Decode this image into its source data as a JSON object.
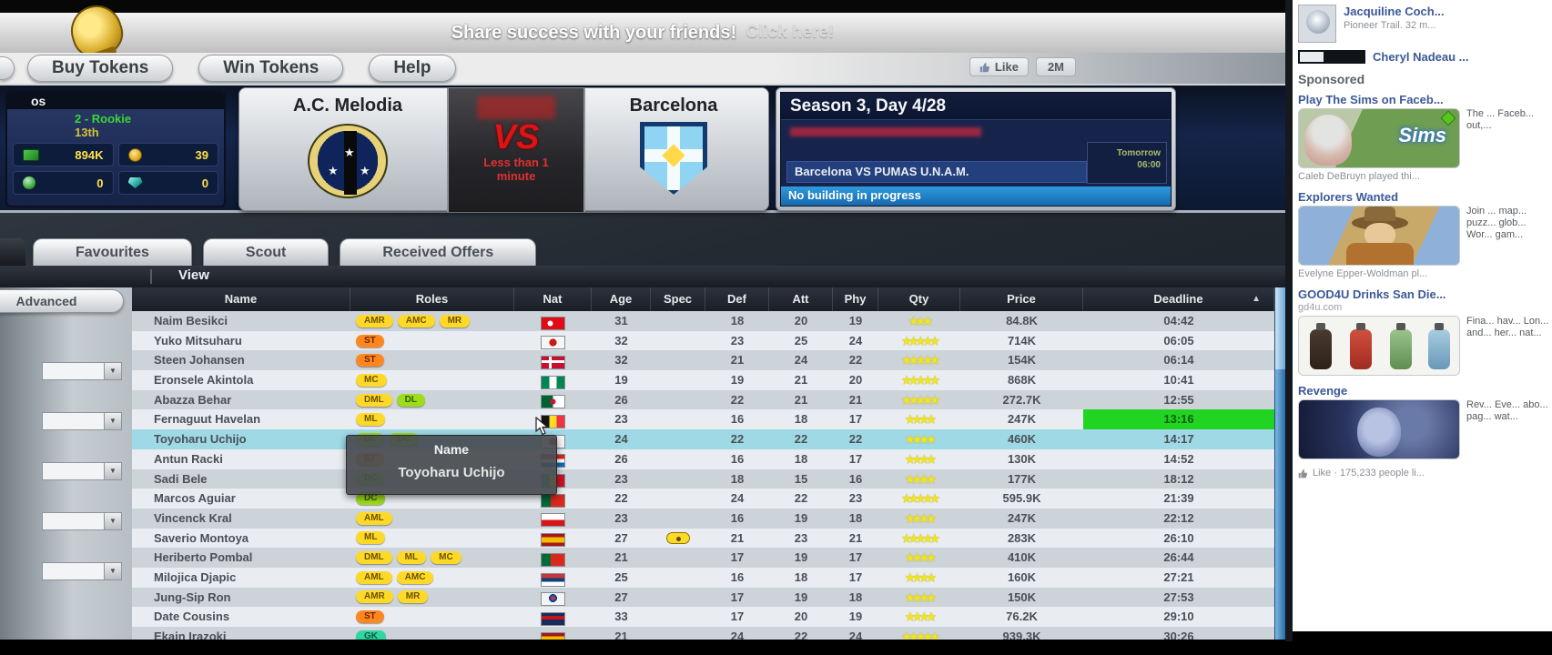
{
  "banner": {
    "text": "Share success with your friends!",
    "link": "Click here!"
  },
  "nav": {
    "buy_tokens": "Buy Tokens",
    "win_tokens": "Win Tokens",
    "help": "Help",
    "like_label": "Like",
    "like_count": "2M"
  },
  "club": {
    "name": "os",
    "level": "2 - Rookie",
    "rank": "13th",
    "cash": "894K",
    "tokens": "39",
    "stat3": "0",
    "stat4": "0"
  },
  "match": {
    "home": "A.C. Melodia",
    "away": "Barcelona",
    "vs": "VS",
    "countdown": "Less than 1 minute"
  },
  "season": {
    "title": "Season 3, Day 4/28",
    "fixture": "Barcelona VS PUMAS U.N.A.M.",
    "status": "No building in progress",
    "timer_label": "Tomorrow",
    "timer_value": "06:00"
  },
  "tabs": [
    {
      "label": "Favourites"
    },
    {
      "label": "Scout"
    },
    {
      "label": "Received Offers"
    }
  ],
  "toolbar": {
    "view": "View",
    "advanced": "Advanced"
  },
  "glyphs": {
    "star": "★",
    "caret": "▼",
    "sort": "▲"
  },
  "filters": [
    "",
    "",
    "",
    "",
    ""
  ],
  "table": {
    "columns": [
      "Name",
      "Roles",
      "Nat",
      "Age",
      "Spec",
      "Def",
      "Att",
      "Phy",
      "Qty",
      "Price",
      "Deadline"
    ],
    "rows": [
      {
        "name": "Naim Besikci",
        "roles": [
          {
            "t": "AMR",
            "c": "y"
          },
          {
            "t": "AMC",
            "c": "y"
          },
          {
            "t": "MR",
            "c": "y"
          }
        ],
        "nat": "turkey",
        "age": "31",
        "spec": false,
        "def": "18",
        "att": "20",
        "phy": "19",
        "stars": 3,
        "price": "84.8K",
        "deadline": "04:42",
        "green": false,
        "highlight": false
      },
      {
        "name": "Yuko Mitsuharu",
        "roles": [
          {
            "t": "ST",
            "c": "o"
          }
        ],
        "nat": "japan",
        "age": "32",
        "spec": false,
        "def": "23",
        "att": "25",
        "phy": "24",
        "stars": 5,
        "price": "714K",
        "deadline": "06:05",
        "green": false,
        "highlight": false
      },
      {
        "name": "Steen Johansen",
        "roles": [
          {
            "t": "ST",
            "c": "o"
          }
        ],
        "nat": "denmark",
        "age": "32",
        "spec": false,
        "def": "21",
        "att": "24",
        "phy": "22",
        "stars": 5,
        "price": "154K",
        "deadline": "06:14",
        "green": false,
        "highlight": false
      },
      {
        "name": "Eronsele Akintola",
        "roles": [
          {
            "t": "MC",
            "c": "y"
          }
        ],
        "nat": "nigeria",
        "age": "19",
        "spec": false,
        "def": "19",
        "att": "21",
        "phy": "20",
        "stars": 5,
        "price": "868K",
        "deadline": "10:41",
        "green": false,
        "highlight": false
      },
      {
        "name": "Abazza Behar",
        "roles": [
          {
            "t": "DML",
            "c": "y"
          },
          {
            "t": "DL",
            "c": "g"
          }
        ],
        "nat": "algeria",
        "age": "26",
        "spec": false,
        "def": "22",
        "att": "21",
        "phy": "21",
        "stars": 5,
        "price": "272.7K",
        "deadline": "12:55",
        "green": false,
        "highlight": false
      },
      {
        "name": "Fernaguut Havelan",
        "roles": [
          {
            "t": "ML",
            "c": "y"
          }
        ],
        "nat": "belgium",
        "age": "23",
        "spec": false,
        "def": "16",
        "att": "18",
        "phy": "17",
        "stars": 4,
        "price": "247K",
        "deadline": "13:16",
        "green": true,
        "highlight": false
      },
      {
        "name": "Toyoharu Uchijo",
        "roles": [
          {
            "t": "DL",
            "c": "g"
          },
          {
            "t": "DC",
            "c": "g"
          }
        ],
        "nat": "japan",
        "age": "24",
        "spec": false,
        "def": "22",
        "att": "22",
        "phy": "22",
        "stars": 4,
        "price": "460K",
        "deadline": "14:17",
        "green": false,
        "highlight": true
      },
      {
        "name": "Antun Racki",
        "roles": [
          {
            "t": "ST",
            "c": "o"
          }
        ],
        "nat": "croatia",
        "age": "26",
        "spec": false,
        "def": "16",
        "att": "18",
        "phy": "17",
        "stars": 4,
        "price": "130K",
        "deadline": "14:52",
        "green": false,
        "highlight": false
      },
      {
        "name": "Sadi Bele",
        "roles": [
          {
            "t": "DC",
            "c": "g"
          }
        ],
        "nat": "mali",
        "age": "23",
        "spec": false,
        "def": "18",
        "att": "15",
        "phy": "16",
        "stars": 4,
        "price": "177K",
        "deadline": "18:12",
        "green": false,
        "highlight": false
      },
      {
        "name": "Marcos Aguiar",
        "roles": [
          {
            "t": "DC",
            "c": "g"
          }
        ],
        "nat": "portugal",
        "age": "22",
        "spec": false,
        "def": "24",
        "att": "22",
        "phy": "23",
        "stars": 5,
        "price": "595.9K",
        "deadline": "21:39",
        "green": false,
        "highlight": false
      },
      {
        "name": "Vincenck Kral",
        "roles": [
          {
            "t": "AML",
            "c": "y"
          }
        ],
        "nat": "czech",
        "age": "23",
        "spec": false,
        "def": "16",
        "att": "19",
        "phy": "18",
        "stars": 4,
        "price": "247K",
        "deadline": "22:12",
        "green": false,
        "highlight": false
      },
      {
        "name": "Saverio Montoya",
        "roles": [
          {
            "t": "ML",
            "c": "y"
          }
        ],
        "nat": "spain",
        "age": "27",
        "spec": true,
        "def": "21",
        "att": "23",
        "phy": "21",
        "stars": 5,
        "price": "283K",
        "deadline": "26:10",
        "green": false,
        "highlight": false
      },
      {
        "name": "Heriberto Pombal",
        "roles": [
          {
            "t": "DML",
            "c": "y"
          },
          {
            "t": "ML",
            "c": "y"
          },
          {
            "t": "MC",
            "c": "y"
          }
        ],
        "nat": "portugal",
        "age": "21",
        "spec": false,
        "def": "17",
        "att": "19",
        "phy": "17",
        "stars": 4,
        "price": "410K",
        "deadline": "26:44",
        "green": false,
        "highlight": false
      },
      {
        "name": "Milojica Djapic",
        "roles": [
          {
            "t": "AML",
            "c": "y"
          },
          {
            "t": "AMC",
            "c": "y"
          }
        ],
        "nat": "serbia",
        "age": "25",
        "spec": false,
        "def": "16",
        "att": "18",
        "phy": "17",
        "stars": 4,
        "price": "160K",
        "deadline": "27:21",
        "green": false,
        "highlight": false
      },
      {
        "name": "Jung-Sip Ron",
        "roles": [
          {
            "t": "AMR",
            "c": "y"
          },
          {
            "t": "MR",
            "c": "y"
          }
        ],
        "nat": "southkorea",
        "age": "27",
        "spec": false,
        "def": "17",
        "att": "19",
        "phy": "18",
        "stars": 4,
        "price": "150K",
        "deadline": "27:53",
        "green": false,
        "highlight": false
      },
      {
        "name": "Date Cousins",
        "roles": [
          {
            "t": "ST",
            "c": "o"
          }
        ],
        "nat": "navy",
        "age": "33",
        "spec": false,
        "def": "17",
        "att": "20",
        "phy": "19",
        "stars": 4,
        "price": "76.2K",
        "deadline": "29:10",
        "green": false,
        "highlight": false
      },
      {
        "name": "Ekain Irazoki",
        "roles": [
          {
            "t": "GK",
            "c": "t"
          }
        ],
        "nat": "spain",
        "age": "21",
        "spec": false,
        "def": "24",
        "att": "22",
        "phy": "24",
        "stars": 5,
        "price": "939.3K",
        "deadline": "30:26",
        "green": false,
        "highlight": false
      }
    ]
  },
  "tooltip": {
    "label": "Name",
    "value": "Toyoharu Uchijo"
  },
  "sidebar": {
    "ticker": [
      {
        "name": "Jacquiline Coch...",
        "sub": "Pioneer Trail. 32 m..."
      },
      {
        "name": "Cheryl Nadeau ..."
      }
    ],
    "sponsored_label": "Sponsored",
    "ads": [
      {
        "title": "Play The Sims on Faceb...",
        "sub": "",
        "img": "sims",
        "image_text": "Sims",
        "body": "The ... Faceb... out,...",
        "social": "Caleb DeBruyn played thi..."
      },
      {
        "title": "Explorers Wanted",
        "sub": "",
        "img": "explorer",
        "image_text": "",
        "body": "Join ... map... puzz... glob... Wor... gam...",
        "social": "Evelyne Epper-Woldman pl..."
      },
      {
        "title": "GOOD4U Drinks San Die...",
        "sub": "gd4u.com",
        "img": "bottles",
        "image_text": "",
        "body": "Fina... hav... Lon... and... her... nat...",
        "social": ""
      },
      {
        "title": "Revenge",
        "sub": "",
        "img": "face",
        "image_text": "",
        "body": "Rev... Eve... abo... pag... wat...",
        "social": ""
      }
    ],
    "like_row": "Like · 175,233 people li..."
  }
}
